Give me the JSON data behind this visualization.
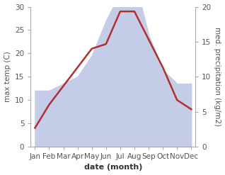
{
  "months": [
    "Jan",
    "Feb",
    "Mar",
    "Apr",
    "May",
    "Jun",
    "Jul",
    "Aug",
    "Sep",
    "Oct",
    "Nov",
    "Dec"
  ],
  "temperature": [
    4,
    9,
    13,
    17,
    21,
    22,
    29,
    29,
    23,
    17,
    10,
    8
  ],
  "precipitation": [
    8,
    8,
    9,
    10,
    13,
    18,
    22,
    24,
    16,
    11,
    9,
    9
  ],
  "temp_color": "#b03030",
  "precip_fill_color": "#c5cce8",
  "left_ylim": [
    0,
    30
  ],
  "right_ylim": [
    0,
    20
  ],
  "left_yticks": [
    0,
    5,
    10,
    15,
    20,
    25,
    30
  ],
  "right_yticks": [
    0,
    5,
    10,
    15,
    20
  ],
  "xlabel": "date (month)",
  "ylabel_left": "max temp (C)",
  "ylabel_right": "med. precipitation (kg/m2)",
  "temp_linewidth": 1.8,
  "figsize": [
    3.18,
    2.47
  ],
  "dpi": 100,
  "label_fontsize": 7.5,
  "xlabel_fontsize": 8,
  "ylabel_fontsize": 7.5
}
